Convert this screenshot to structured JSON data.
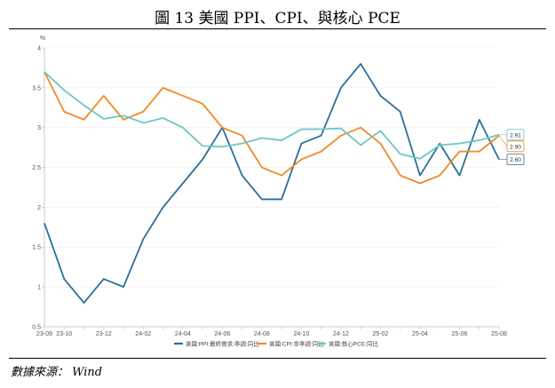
{
  "page": {
    "title": "圖 13 美國 PPI、CPI、與核心 PCE",
    "source": "數據來源： Wind"
  },
  "chart_data": {
    "type": "line",
    "title": "圖 13 美國 PPI、CPI、與核心 PCE",
    "ylabel": "%",
    "ylim": [
      0.5,
      4
    ],
    "yticks": [
      0.5,
      1,
      1.5,
      2,
      2.5,
      3,
      3.5,
      4
    ],
    "x": [
      "23-09",
      "23-10",
      "23-11",
      "23-12",
      "24-01",
      "24-02",
      "24-03",
      "24-04",
      "24-05",
      "24-06",
      "24-07",
      "24-08",
      "24-09",
      "24-10",
      "24-11",
      "24-12",
      "25-01",
      "25-02",
      "25-03",
      "25-04",
      "25-05",
      "25-06",
      "25-07",
      "25-08"
    ],
    "xtick_labels": [
      "23-09",
      "23-10",
      "23-12",
      "24-02",
      "24-04",
      "24-06",
      "24-08",
      "24-10",
      "24-12",
      "25-02",
      "25-04",
      "25-06",
      "25-08"
    ],
    "legend_position": "bottom",
    "series": [
      {
        "name": "美國:PPI:最終需求:季調:同比",
        "color": "#2a6f97",
        "values": [
          1.8,
          1.1,
          0.8,
          1.1,
          1.0,
          1.6,
          2.0,
          2.3,
          2.6,
          3.0,
          2.4,
          2.1,
          2.1,
          2.8,
          2.9,
          3.5,
          3.8,
          3.4,
          3.2,
          2.4,
          2.8,
          2.4,
          3.1,
          2.6
        ],
        "end_label": "2.60"
      },
      {
        "name": "美國:CPI:非季調:同比",
        "color": "#f08a24",
        "values": [
          3.7,
          3.2,
          3.1,
          3.4,
          3.1,
          3.2,
          3.5,
          3.4,
          3.3,
          3.0,
          2.9,
          2.5,
          2.4,
          2.6,
          2.7,
          2.9,
          3.0,
          2.8,
          2.4,
          2.3,
          2.4,
          2.7,
          2.7,
          2.9
        ],
        "end_label": "2.90"
      },
      {
        "name": "美國:核心PCE:同比",
        "color": "#6cc7c4",
        "values": [
          3.7,
          3.47,
          3.28,
          3.11,
          3.15,
          3.06,
          3.12,
          3.0,
          2.77,
          2.76,
          2.8,
          2.87,
          2.84,
          2.98,
          2.98,
          2.99,
          2.78,
          2.96,
          2.67,
          2.61,
          2.78,
          2.8,
          2.84,
          2.91
        ],
        "end_label": "2.91"
      }
    ]
  }
}
